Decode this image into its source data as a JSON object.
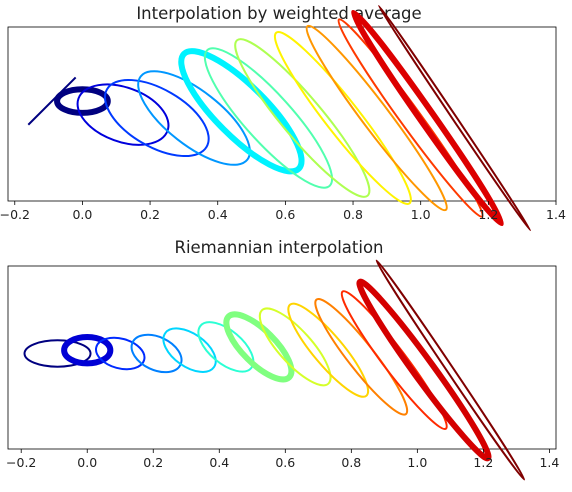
{
  "chart_data": [
    {
      "type": "scatter",
      "title": "Interpolation by weighted average",
      "xlabel": "",
      "ylabel": "",
      "xlim": [
        -0.22,
        1.4
      ],
      "ylim": [
        -0.5,
        0.5
      ],
      "x_ticks": [
        -0.2,
        0.0,
        0.2,
        0.4,
        0.6,
        0.8,
        1.0,
        1.2,
        1.4
      ],
      "x_tick_labels": [
        "-0.2",
        "0.0",
        "0.2",
        "0.4",
        "0.6",
        "0.8",
        "1.0",
        "1.2",
        "1.4"
      ],
      "y_ticks": [],
      "grid": false,
      "legend": "none",
      "colormap": "jet",
      "series": [
        {
          "t": 0.0,
          "cx": 0.0,
          "cy": 0.05,
          "rx": 0.075,
          "ry": 0.035,
          "angle_deg": 0,
          "thick": true
        },
        {
          "t": 0.1,
          "cx": 0.12,
          "cy": 0.01,
          "rx": 0.14,
          "ry": 0.08,
          "angle_deg": 20,
          "thick": false
        },
        {
          "t": 0.2,
          "cx": 0.22,
          "cy": 0.0,
          "rx": 0.17,
          "ry": 0.085,
          "angle_deg": 30,
          "thick": false
        },
        {
          "t": 0.3,
          "cx": 0.33,
          "cy": 0.0,
          "rx": 0.2,
          "ry": 0.08,
          "angle_deg": 38,
          "thick": false
        },
        {
          "t": 0.4,
          "cx": 0.47,
          "cy": 0.02,
          "rx": 0.24,
          "ry": 0.075,
          "angle_deg": 45,
          "thick": true
        },
        {
          "t": 0.5,
          "cx": 0.55,
          "cy": 0.0,
          "rx": 0.27,
          "ry": 0.07,
          "angle_deg": 48,
          "thick": false
        },
        {
          "t": 0.6,
          "cx": 0.65,
          "cy": 0.0,
          "rx": 0.3,
          "ry": 0.06,
          "angle_deg": 50,
          "thick": false
        },
        {
          "t": 0.7,
          "cx": 0.77,
          "cy": 0.0,
          "rx": 0.32,
          "ry": 0.05,
          "angle_deg": 52,
          "thick": false
        },
        {
          "t": 0.8,
          "cx": 0.87,
          "cy": 0.0,
          "rx": 0.34,
          "ry": 0.04,
          "angle_deg": 53,
          "thick": false
        },
        {
          "t": 0.9,
          "cx": 0.97,
          "cy": 0.0,
          "rx": 0.36,
          "ry": 0.03,
          "angle_deg": 54,
          "thick": false
        },
        {
          "t": 1.0,
          "cx": 1.02,
          "cy": 0.0,
          "rx": 0.38,
          "ry": 0.02,
          "angle_deg": 55,
          "thick": true
        },
        {
          "t": 1.1,
          "cx": 1.1,
          "cy": 0.0,
          "rx": 0.4,
          "ry": 0.006,
          "angle_deg": 56,
          "thick": false
        }
      ],
      "segment": {
        "x": [
          -0.16,
          -0.02
        ],
        "y": [
          -0.02,
          0.12
        ]
      }
    },
    {
      "type": "scatter",
      "title": "Riemannian interpolation",
      "xlabel": "",
      "ylabel": "",
      "xlim": [
        -0.24,
        1.42
      ],
      "ylim": [
        -0.5,
        0.5
      ],
      "x_ticks": [
        -0.2,
        0.0,
        0.2,
        0.4,
        0.6,
        0.8,
        1.0,
        1.2,
        1.4
      ],
      "x_tick_labels": [
        "-0.2",
        "0.0",
        "0.2",
        "0.4",
        "0.6",
        "0.8",
        "1.0",
        "1.2",
        "1.4"
      ],
      "y_ticks": [],
      "grid": false,
      "legend": "none",
      "colormap": "jet",
      "series": [
        {
          "t": 0.0,
          "cx": -0.09,
          "cy": 0.05,
          "rx": 0.1,
          "ry": 0.04,
          "angle_deg": 0,
          "thick": false
        },
        {
          "t": 0.1,
          "cx": 0.0,
          "cy": 0.06,
          "rx": 0.07,
          "ry": 0.04,
          "angle_deg": 0,
          "thick": true
        },
        {
          "t": 0.2,
          "cx": 0.1,
          "cy": 0.05,
          "rx": 0.075,
          "ry": 0.045,
          "angle_deg": 15,
          "thick": false
        },
        {
          "t": 0.3,
          "cx": 0.21,
          "cy": 0.05,
          "rx": 0.08,
          "ry": 0.05,
          "angle_deg": 25,
          "thick": false
        },
        {
          "t": 0.4,
          "cx": 0.31,
          "cy": 0.06,
          "rx": 0.09,
          "ry": 0.05,
          "angle_deg": 35,
          "thick": false
        },
        {
          "t": 0.5,
          "cx": 0.42,
          "cy": 0.07,
          "rx": 0.1,
          "ry": 0.05,
          "angle_deg": 40,
          "thick": false
        },
        {
          "t": 0.6,
          "cx": 0.52,
          "cy": 0.07,
          "rx": 0.13,
          "ry": 0.05,
          "angle_deg": 45,
          "thick": true
        },
        {
          "t": 0.7,
          "cx": 0.63,
          "cy": 0.07,
          "rx": 0.15,
          "ry": 0.05,
          "angle_deg": 48,
          "thick": false
        },
        {
          "t": 0.8,
          "cx": 0.73,
          "cy": 0.06,
          "rx": 0.18,
          "ry": 0.045,
          "angle_deg": 50,
          "thick": false
        },
        {
          "t": 0.9,
          "cx": 0.83,
          "cy": 0.04,
          "rx": 0.22,
          "ry": 0.04,
          "angle_deg": 52,
          "thick": false
        },
        {
          "t": 1.0,
          "cx": 0.93,
          "cy": 0.03,
          "rx": 0.26,
          "ry": 0.035,
          "angle_deg": 53,
          "thick": false
        },
        {
          "t": 1.1,
          "cx": 1.02,
          "cy": 0.0,
          "rx": 0.33,
          "ry": 0.03,
          "angle_deg": 54,
          "thick": true
        },
        {
          "t": 1.2,
          "cx": 1.1,
          "cy": 0.0,
          "rx": 0.4,
          "ry": 0.01,
          "angle_deg": 56,
          "thick": false
        }
      ]
    }
  ]
}
